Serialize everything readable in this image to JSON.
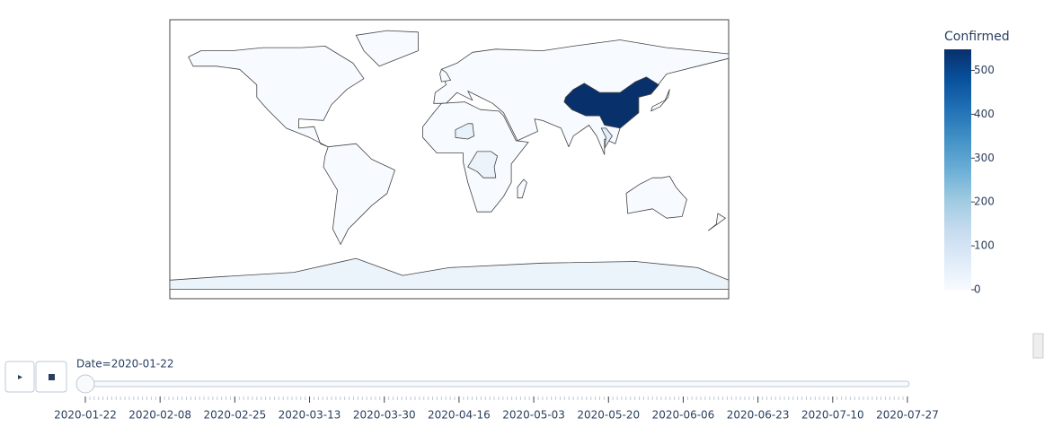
{
  "chart_data": {
    "type": "choropleth",
    "colorbar_title": "Confirmed",
    "clim": [
      0,
      548
    ],
    "cticks": [
      0,
      100,
      200,
      300,
      400,
      500
    ],
    "colorscale": [
      "#f7fbff",
      "#deebf7",
      "#c6dbef",
      "#9ecae1",
      "#6baed6",
      "#4292c6",
      "#2171b5",
      "#08519c",
      "#08306b"
    ],
    "values": [
      548,
      30,
      30,
      40,
      60
    ],
    "slider": {
      "label": "Date=2020-01-22",
      "ticks": [
        "2020-01-22",
        "2020-02-08",
        "2020-02-25",
        "2020-03-13",
        "2020-03-30",
        "2020-04-16",
        "2020-05-03",
        "2020-05-20",
        "2020-06-06",
        "2020-06-23",
        "2020-07-10",
        "2020-07-27"
      ]
    }
  }
}
